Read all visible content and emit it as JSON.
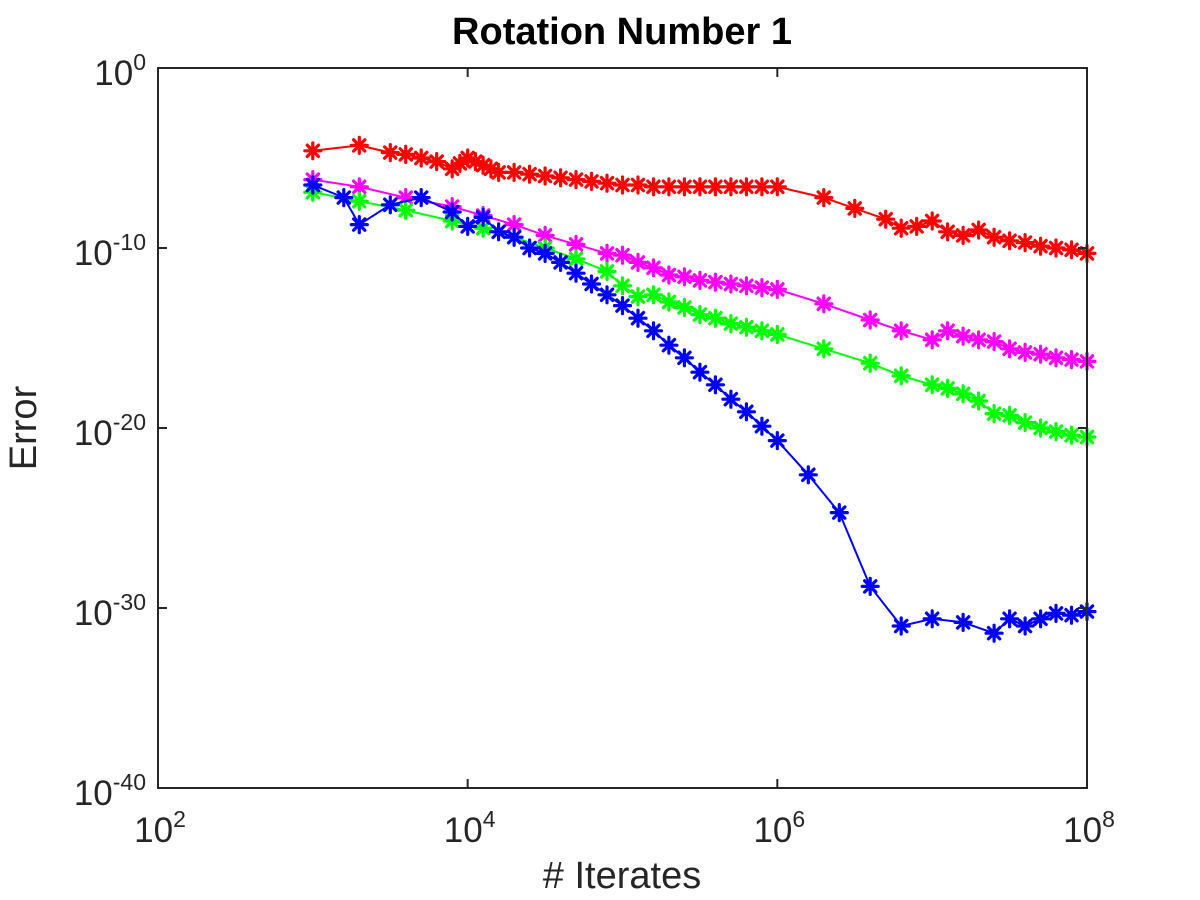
{
  "chart_data": {
    "type": "scatter",
    "title": "Rotation Number 1",
    "xlabel": "# Iterates",
    "ylabel": "Error",
    "xscale": "log",
    "yscale": "log",
    "xlim_log10": [
      2,
      8
    ],
    "ylim_log10": [
      -40,
      0
    ],
    "x_ticks": [
      {
        "base": "10",
        "exp": "2"
      },
      {
        "base": "10",
        "exp": "4"
      },
      {
        "base": "10",
        "exp": "6"
      },
      {
        "base": "10",
        "exp": "8"
      }
    ],
    "y_ticks": [
      {
        "base": "10",
        "exp": "0"
      },
      {
        "base": "10",
        "exp": "-10"
      },
      {
        "base": "10",
        "exp": "-20"
      },
      {
        "base": "10",
        "exp": "-30"
      },
      {
        "base": "10",
        "exp": "-40"
      }
    ],
    "marker": "asterisk",
    "series": [
      {
        "name": "red",
        "color": "#ff0000",
        "points_log10": [
          [
            3.0,
            -4.6
          ],
          [
            3.3,
            -4.3
          ],
          [
            3.5,
            -4.7
          ],
          [
            3.6,
            -4.8
          ],
          [
            3.7,
            -5.0
          ],
          [
            3.8,
            -5.2
          ],
          [
            3.9,
            -5.6
          ],
          [
            3.95,
            -5.3
          ],
          [
            4.0,
            -5.0
          ],
          [
            4.05,
            -5.2
          ],
          [
            4.1,
            -5.4
          ],
          [
            4.15,
            -5.6
          ],
          [
            4.2,
            -5.8
          ],
          [
            4.3,
            -5.8
          ],
          [
            4.4,
            -5.9
          ],
          [
            4.5,
            -6.0
          ],
          [
            4.6,
            -6.1
          ],
          [
            4.7,
            -6.2
          ],
          [
            4.8,
            -6.3
          ],
          [
            4.9,
            -6.4
          ],
          [
            5.0,
            -6.5
          ],
          [
            5.1,
            -6.5
          ],
          [
            5.2,
            -6.6
          ],
          [
            5.3,
            -6.6
          ],
          [
            5.4,
            -6.6
          ],
          [
            5.5,
            -6.6
          ],
          [
            5.6,
            -6.6
          ],
          [
            5.7,
            -6.6
          ],
          [
            5.8,
            -6.6
          ],
          [
            5.9,
            -6.6
          ],
          [
            6.0,
            -6.6
          ],
          [
            6.3,
            -7.2
          ],
          [
            6.5,
            -7.8
          ],
          [
            6.7,
            -8.4
          ],
          [
            6.8,
            -8.9
          ],
          [
            6.9,
            -8.8
          ],
          [
            7.0,
            -8.5
          ],
          [
            7.1,
            -9.1
          ],
          [
            7.2,
            -9.3
          ],
          [
            7.3,
            -9.0
          ],
          [
            7.4,
            -9.4
          ],
          [
            7.5,
            -9.6
          ],
          [
            7.6,
            -9.7
          ],
          [
            7.7,
            -9.9
          ],
          [
            7.8,
            -10.0
          ],
          [
            7.9,
            -10.1
          ],
          [
            8.0,
            -10.3
          ]
        ]
      },
      {
        "name": "magenta",
        "color": "#ff00ff",
        "points_log10": [
          [
            3.0,
            -6.2
          ],
          [
            3.3,
            -6.6
          ],
          [
            3.6,
            -7.2
          ],
          [
            3.9,
            -7.7
          ],
          [
            4.1,
            -8.2
          ],
          [
            4.3,
            -8.7
          ],
          [
            4.5,
            -9.3
          ],
          [
            4.7,
            -9.8
          ],
          [
            4.9,
            -10.3
          ],
          [
            5.0,
            -10.4
          ],
          [
            5.1,
            -10.8
          ],
          [
            5.2,
            -11.1
          ],
          [
            5.3,
            -11.5
          ],
          [
            5.4,
            -11.6
          ],
          [
            5.5,
            -11.8
          ],
          [
            5.6,
            -11.9
          ],
          [
            5.7,
            -12.0
          ],
          [
            5.8,
            -12.1
          ],
          [
            5.9,
            -12.2
          ],
          [
            6.0,
            -12.3
          ],
          [
            6.3,
            -13.1
          ],
          [
            6.6,
            -14.0
          ],
          [
            6.8,
            -14.6
          ],
          [
            7.0,
            -15.1
          ],
          [
            7.1,
            -14.6
          ],
          [
            7.2,
            -14.9
          ],
          [
            7.3,
            -15.1
          ],
          [
            7.4,
            -15.2
          ],
          [
            7.5,
            -15.6
          ],
          [
            7.6,
            -15.8
          ],
          [
            7.7,
            -15.9
          ],
          [
            7.8,
            -16.1
          ],
          [
            7.9,
            -16.2
          ],
          [
            8.0,
            -16.3
          ]
        ]
      },
      {
        "name": "green",
        "color": "#00ff00",
        "points_log10": [
          [
            3.0,
            -6.9
          ],
          [
            3.3,
            -7.4
          ],
          [
            3.6,
            -7.9
          ],
          [
            3.9,
            -8.5
          ],
          [
            4.1,
            -8.9
          ],
          [
            4.3,
            -9.4
          ],
          [
            4.5,
            -10.0
          ],
          [
            4.7,
            -10.6
          ],
          [
            4.9,
            -11.3
          ],
          [
            5.0,
            -12.1
          ],
          [
            5.1,
            -12.7
          ],
          [
            5.2,
            -12.6
          ],
          [
            5.3,
            -13.0
          ],
          [
            5.4,
            -13.3
          ],
          [
            5.5,
            -13.7
          ],
          [
            5.6,
            -13.9
          ],
          [
            5.7,
            -14.2
          ],
          [
            5.8,
            -14.4
          ],
          [
            5.9,
            -14.6
          ],
          [
            6.0,
            -14.8
          ],
          [
            6.3,
            -15.6
          ],
          [
            6.6,
            -16.4
          ],
          [
            6.8,
            -17.1
          ],
          [
            7.0,
            -17.6
          ],
          [
            7.1,
            -17.8
          ],
          [
            7.2,
            -18.1
          ],
          [
            7.3,
            -18.5
          ],
          [
            7.4,
            -19.2
          ],
          [
            7.5,
            -19.3
          ],
          [
            7.6,
            -19.7
          ],
          [
            7.7,
            -20.0
          ],
          [
            7.8,
            -20.2
          ],
          [
            7.9,
            -20.4
          ],
          [
            8.0,
            -20.5
          ]
        ]
      },
      {
        "name": "blue",
        "color": "#0000ff",
        "points_log10": [
          [
            3.0,
            -6.5
          ],
          [
            3.2,
            -7.2
          ],
          [
            3.3,
            -8.7
          ],
          [
            3.5,
            -7.6
          ],
          [
            3.7,
            -7.2
          ],
          [
            3.9,
            -8.0
          ],
          [
            4.0,
            -8.8
          ],
          [
            4.1,
            -8.3
          ],
          [
            4.2,
            -9.1
          ],
          [
            4.3,
            -9.4
          ],
          [
            4.4,
            -10.0
          ],
          [
            4.5,
            -10.3
          ],
          [
            4.6,
            -10.8
          ],
          [
            4.7,
            -11.4
          ],
          [
            4.8,
            -12.0
          ],
          [
            4.9,
            -12.6
          ],
          [
            5.0,
            -13.2
          ],
          [
            5.1,
            -13.9
          ],
          [
            5.2,
            -14.6
          ],
          [
            5.3,
            -15.4
          ],
          [
            5.4,
            -16.1
          ],
          [
            5.5,
            -16.9
          ],
          [
            5.6,
            -17.6
          ],
          [
            5.7,
            -18.4
          ],
          [
            5.8,
            -19.1
          ],
          [
            5.9,
            -19.9
          ],
          [
            6.0,
            -20.7
          ],
          [
            6.2,
            -22.6
          ],
          [
            6.4,
            -24.7
          ],
          [
            6.6,
            -28.8
          ],
          [
            6.8,
            -31.0
          ],
          [
            7.0,
            -30.6
          ],
          [
            7.2,
            -30.8
          ],
          [
            7.4,
            -31.4
          ],
          [
            7.5,
            -30.6
          ],
          [
            7.6,
            -31.0
          ],
          [
            7.7,
            -30.6
          ],
          [
            7.8,
            -30.3
          ],
          [
            7.9,
            -30.4
          ],
          [
            8.0,
            -30.2
          ]
        ]
      }
    ]
  }
}
